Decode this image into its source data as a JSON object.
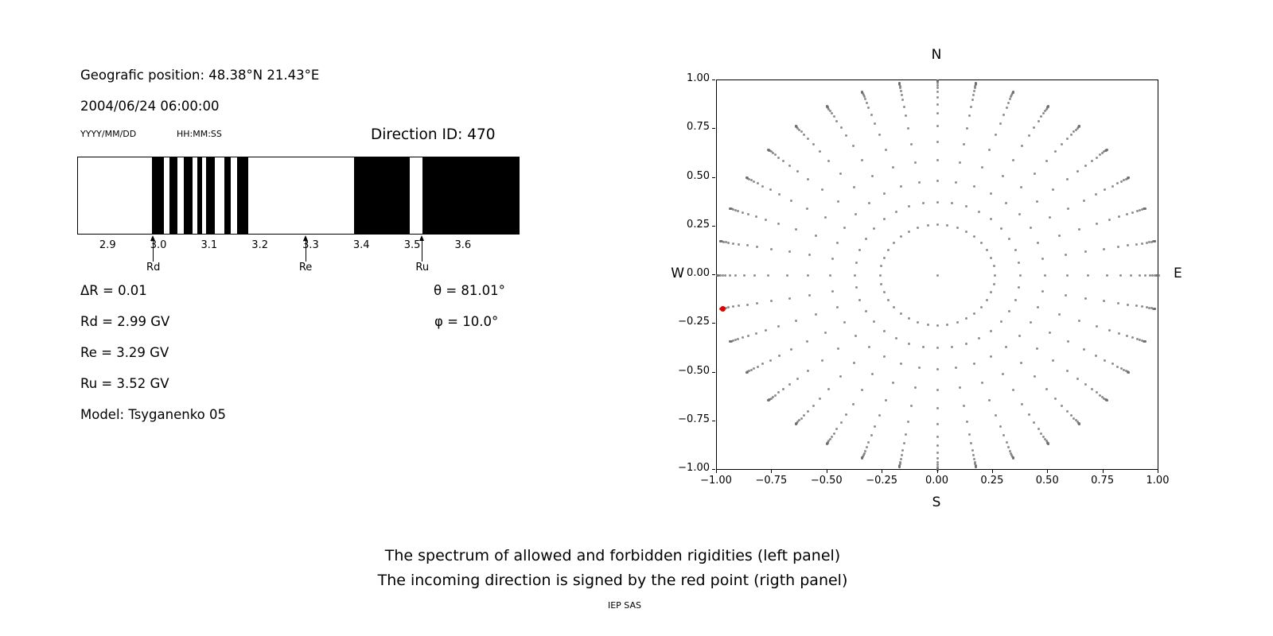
{
  "colors": {
    "background": "#ffffff",
    "forbidden_band": "#000000",
    "gray_dot": "#6e6e6e",
    "red_point": "#e50000",
    "axis": "#000000"
  },
  "left_panel": {
    "geo_position": "Geografic position: 48.38°N 21.43°E",
    "datetime": "2004/06/24 06:00:00",
    "date_format_label": "YYYY/MM/DD",
    "time_format_label": "HH:MM:SS",
    "direction_id_label": "Direction ID: 470",
    "delta_r": "ΔR = 0.01",
    "rd": "Rd = 2.99 GV",
    "re": "Re = 3.29 GV",
    "ru": "Ru = 3.52 GV",
    "model": "Model: Tsyganenko 05",
    "theta": "θ = 81.01°",
    "phi": "φ = 10.0°"
  },
  "captions": {
    "line1": "The spectrum of allowed and forbidden rigidities (left panel)",
    "line2": "The incoming direction is signed by the red point (rigth panel)",
    "credit": "IEP SAS"
  },
  "chart_data": [
    {
      "type": "bar",
      "title": "Direction ID: 470",
      "description": "Cosmic-ray penumbra spectrum: black bands vs white gaps over rigidity (GV)",
      "xlim": [
        2.84,
        3.71
      ],
      "xticks": [
        "2.9",
        "3.0",
        "3.1",
        "3.2",
        "3.3",
        "3.4",
        "3.5",
        "3.6"
      ],
      "xtick_values": [
        2.9,
        3.0,
        3.1,
        3.2,
        3.3,
        3.4,
        3.5,
        3.6
      ],
      "black_bands_gv": [
        [
          2.986,
          3.009
        ],
        [
          3.02,
          3.036
        ],
        [
          3.048,
          3.066
        ],
        [
          3.075,
          3.084
        ],
        [
          3.093,
          3.109
        ],
        [
          3.128,
          3.141
        ],
        [
          3.153,
          3.175
        ],
        [
          3.384,
          3.494
        ],
        [
          3.519,
          3.71
        ]
      ],
      "markers": [
        {
          "label": "Rd",
          "x": 2.99
        },
        {
          "label": "Re",
          "x": 3.29
        },
        {
          "label": "Ru",
          "x": 3.52
        }
      ]
    },
    {
      "type": "scatter",
      "description": "Direction map: gray dotted rays every 10° of azimuth, radius = sin(theta); red point marks the incoming direction",
      "xlim": [
        -1.0,
        1.0
      ],
      "ylim": [
        -1.0,
        1.0
      ],
      "xticks": [
        "−1.00",
        "−0.75",
        "−0.50",
        "−0.25",
        "0.00",
        "0.25",
        "0.50",
        "0.75",
        "1.00"
      ],
      "yticks": [
        "−1.00",
        "−0.75",
        "−0.50",
        "−0.25",
        "0.00",
        "0.25",
        "0.50",
        "0.75",
        "1.00"
      ],
      "xtick_values": [
        -1.0,
        -0.75,
        -0.5,
        -0.25,
        0.0,
        0.25,
        0.5,
        0.75,
        1.0
      ],
      "ytick_values": [
        -1.0,
        -0.75,
        -0.5,
        -0.25,
        0.0,
        0.25,
        0.5,
        0.75,
        1.0
      ],
      "compass": {
        "north": "N",
        "south": "S",
        "west": "W",
        "east": "E"
      },
      "rays": {
        "azimuth_start_deg": 0,
        "azimuth_step_deg": 10,
        "ray_count": 36,
        "theta_deg": [
          15,
          22,
          29,
          36,
          43,
          50,
          56,
          61,
          66,
          70,
          74,
          77,
          80,
          83,
          85,
          87,
          88.5,
          90
        ],
        "radius_rule": "sin(theta)"
      },
      "center_point": {
        "x": 0.0,
        "y": 0.0
      },
      "red_point": {
        "x": -0.9727,
        "y": -0.1715
      }
    }
  ]
}
